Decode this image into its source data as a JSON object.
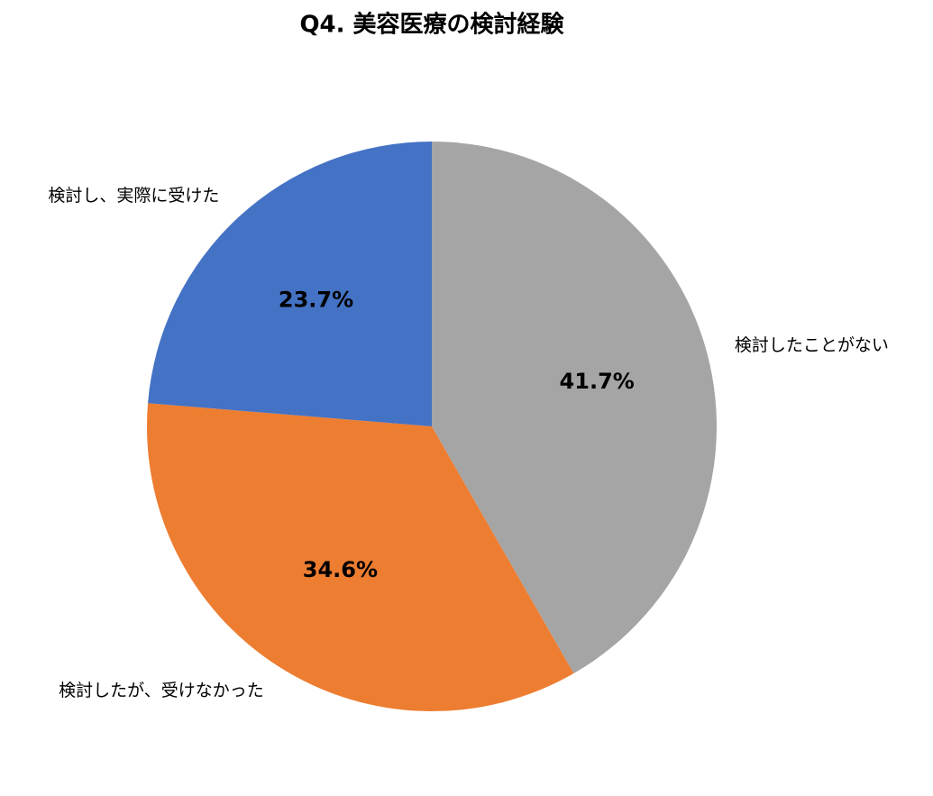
{
  "chart_data": {
    "type": "pie",
    "title": "Q4. 美容医療の検討経験",
    "categories": [
      "検討したことがない",
      "検討したが、受けなかった",
      "検討し、実際に受けた"
    ],
    "values": [
      41.7,
      34.6,
      23.7
    ],
    "value_labels": [
      "41.7%",
      "34.6%",
      "23.7%"
    ],
    "colors": [
      "#a5a5a5",
      "#ed7d31",
      "#4472c4"
    ]
  }
}
